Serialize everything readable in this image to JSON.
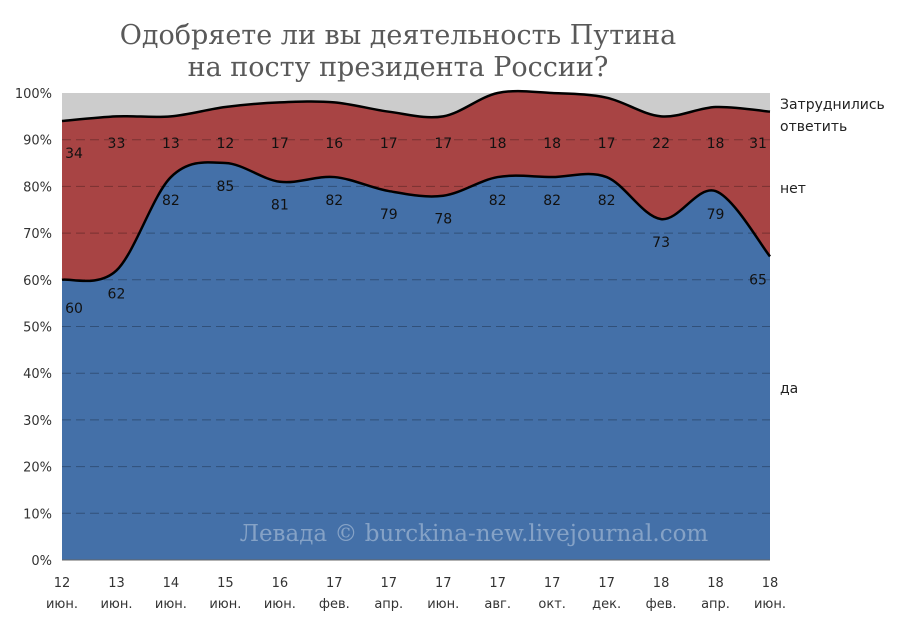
{
  "chart_data": {
    "type": "area",
    "stacked": true,
    "title_lines": [
      "Одобряете ли вы деятельность Путина",
      "на посту президента России?"
    ],
    "ylim": [
      0,
      100
    ],
    "y_ticks": [
      "0%",
      "10%",
      "20%",
      "30%",
      "40%",
      "50%",
      "60%",
      "70%",
      "80%",
      "90%",
      "100%"
    ],
    "x_ticks": [
      [
        "12",
        "июн."
      ],
      [
        "13",
        "июн."
      ],
      [
        "14",
        "июн."
      ],
      [
        "15",
        "июн."
      ],
      [
        "16",
        "июн."
      ],
      [
        "17",
        "фев."
      ],
      [
        "17",
        "апр."
      ],
      [
        "17",
        "июн."
      ],
      [
        "17",
        "авг."
      ],
      [
        "17",
        "окт."
      ],
      [
        "17",
        "дек."
      ],
      [
        "18",
        "фев."
      ],
      [
        "18",
        "апр."
      ],
      [
        "18",
        "июн."
      ]
    ],
    "series": [
      {
        "name": "да",
        "color": "#4470a8",
        "values": [
          60,
          62,
          82,
          85,
          81,
          82,
          79,
          78,
          82,
          82,
          82,
          73,
          79,
          65
        ]
      },
      {
        "name": "нет",
        "color": "#a84444",
        "values": [
          34,
          33,
          13,
          12,
          17,
          16,
          17,
          17,
          18,
          18,
          17,
          22,
          18,
          31
        ]
      },
      {
        "name": "Затруднились ответить",
        "color": "#cccccc",
        "label_lines": [
          "Затруднились",
          "ответить"
        ],
        "values": [
          6,
          5,
          5,
          3,
          2,
          2,
          4,
          5,
          0,
          0,
          1,
          5,
          3,
          4
        ]
      }
    ],
    "grid": true,
    "watermark": "Левада © burckina-new.livejournal.com"
  }
}
